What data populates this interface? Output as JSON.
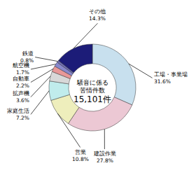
{
  "chart_data": {
    "type": "donut",
    "categories": [
      "工場・事業場",
      "建設作業",
      "営業",
      "家庭生活",
      "拡声機",
      "自動車",
      "航空機",
      "鉄道",
      "その他"
    ],
    "values": [
      31.6,
      27.8,
      10.8,
      7.2,
      3.6,
      2.2,
      1.7,
      0.8,
      14.3
    ],
    "value_labels": [
      "31.6%",
      "27.8%",
      "10.8%",
      "7.2%",
      "3.6%",
      "2.2%",
      "1.7%",
      "0.8%",
      "14.3%"
    ],
    "colors": [
      "#c8e0ee",
      "#ecc8d4",
      "#eeeebc",
      "#c0ecec",
      "#d8d8d8",
      "#e89898",
      "#8888cc",
      "#7070b8",
      "#1c1c78"
    ],
    "data_labels": true,
    "annotations": [
      "騒音に係る",
      "苦情件数",
      "15,101件"
    ]
  }
}
